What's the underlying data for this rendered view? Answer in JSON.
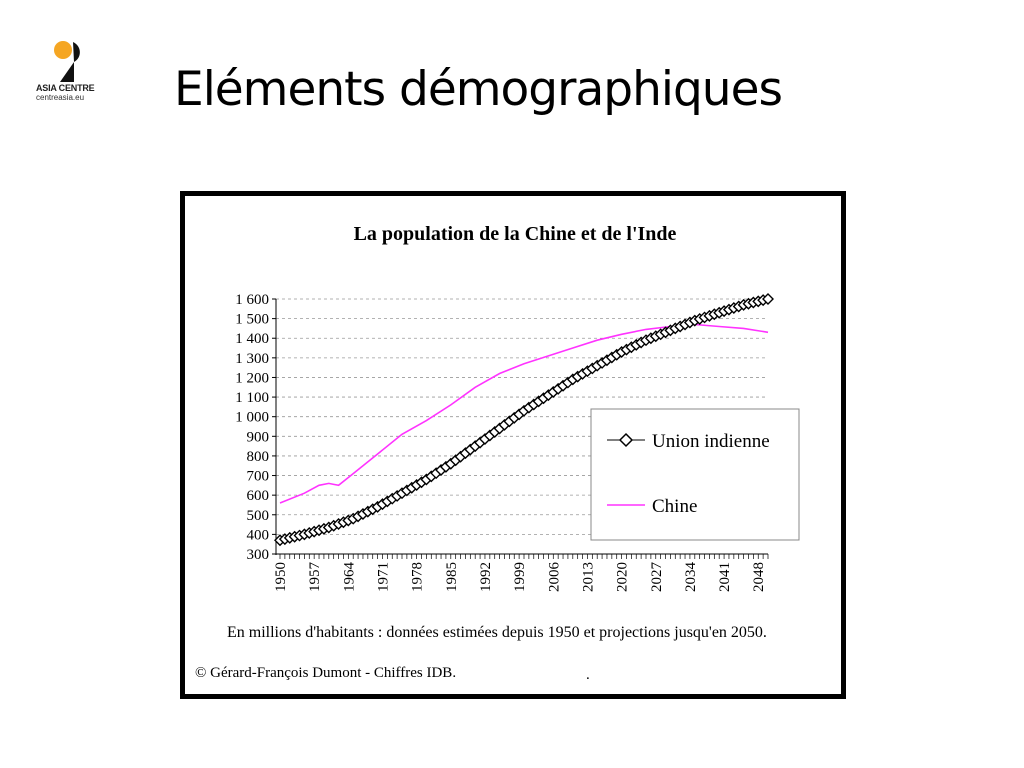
{
  "logo": {
    "name": "ASIA CENTRE",
    "url": "centreasia.eu"
  },
  "slide": {
    "title": "Eléments démographiques"
  },
  "colors": {
    "china": "#ff33ff",
    "india": "#000000",
    "grid": "#999999"
  },
  "chart_data": {
    "type": "line",
    "title": "La population de la Chine et de l'Inde",
    "xlabel": "",
    "ylabel": "",
    "xlim": [
      1950,
      2050
    ],
    "ylim": [
      300,
      1600
    ],
    "x_ticks": [
      1950,
      1957,
      1964,
      1971,
      1978,
      1985,
      1992,
      1999,
      2006,
      2013,
      2020,
      2027,
      2034,
      2041,
      2048
    ],
    "y_ticks": [
      {
        "v": 300,
        "label": "300"
      },
      {
        "v": 400,
        "label": "400"
      },
      {
        "v": 500,
        "label": "500"
      },
      {
        "v": 600,
        "label": "600"
      },
      {
        "v": 700,
        "label": "700"
      },
      {
        "v": 800,
        "label": "800"
      },
      {
        "v": 900,
        "label": "900"
      },
      {
        "v": 1000,
        "label": "1 000"
      },
      {
        "v": 1100,
        "label": "1 100"
      },
      {
        "v": 1200,
        "label": "1 200"
      },
      {
        "v": 1300,
        "label": "1 300"
      },
      {
        "v": 1400,
        "label": "1 400"
      },
      {
        "v": 1500,
        "label": "1 500"
      },
      {
        "v": 1600,
        "label": "1 600"
      }
    ],
    "grid": true,
    "legend_position": "right",
    "series": [
      {
        "name": "Union indienne",
        "marker": "diamond",
        "x": [
          1950,
          1955,
          1960,
          1965,
          1970,
          1975,
          1980,
          1985,
          1990,
          1995,
          2000,
          2005,
          2010,
          2015,
          2020,
          2025,
          2030,
          2035,
          2040,
          2045,
          2050
        ],
        "values": [
          370,
          400,
          435,
          480,
          540,
          610,
          680,
          760,
          850,
          940,
          1030,
          1110,
          1190,
          1260,
          1330,
          1390,
          1440,
          1490,
          1530,
          1570,
          1600
        ]
      },
      {
        "name": "Chine",
        "marker": "none",
        "x": [
          1950,
          1955,
          1958,
          1960,
          1961,
          1962,
          1965,
          1970,
          1975,
          1980,
          1985,
          1990,
          1995,
          2000,
          2005,
          2010,
          2015,
          2020,
          2025,
          2030,
          2035,
          2040,
          2045,
          2050
        ],
        "values": [
          560,
          610,
          650,
          660,
          655,
          650,
          710,
          810,
          910,
          980,
          1060,
          1150,
          1220,
          1270,
          1310,
          1350,
          1390,
          1420,
          1445,
          1460,
          1470,
          1460,
          1450,
          1430
        ]
      }
    ],
    "notes": [
      "En millions d'habitants : données estimées depuis 1950 et projections jusqu'en 2050.",
      "© Gérard-François Dumont - Chiffres IDB."
    ],
    "stray_mark": "."
  }
}
